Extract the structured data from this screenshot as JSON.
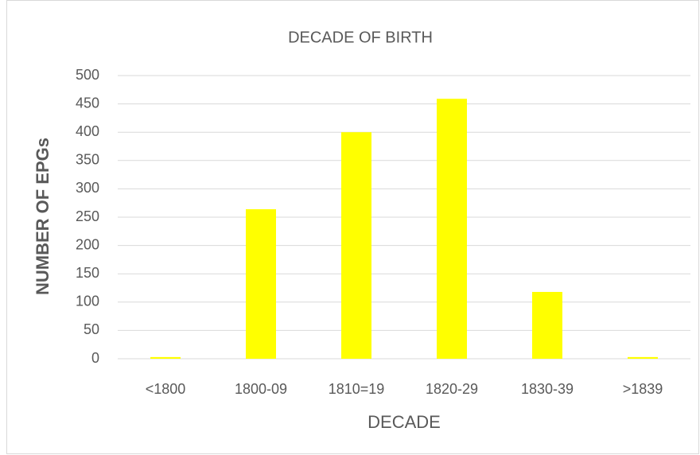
{
  "chart_data": {
    "type": "bar",
    "title": "DECADE OF BIRTH",
    "x_label": "DECADE",
    "y_label": "NUMBER OF EPGs",
    "categories": [
      "<1800",
      "1800-09",
      "1810=19",
      "1820-29",
      "1830-39",
      ">1839"
    ],
    "values": [
      3,
      264,
      400,
      459,
      118,
      3
    ],
    "color": "#ffff00",
    "ylim": [
      0,
      500
    ],
    "yticks": [
      0,
      50,
      100,
      150,
      200,
      250,
      300,
      350,
      400,
      450,
      500
    ],
    "grid": true
  }
}
